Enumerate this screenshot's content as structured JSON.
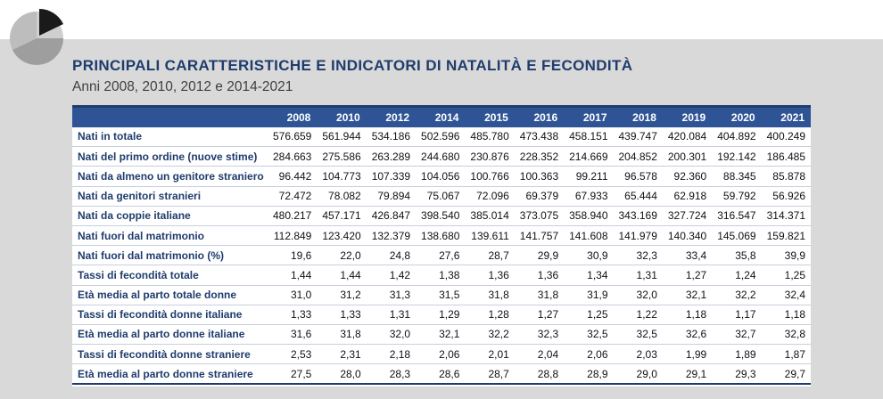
{
  "header": {
    "title": "PRINCIPALI CARATTERISTICHE E INDICATORI DI NATALITÀ E FECONDITÀ",
    "subtitle": "Anni 2008, 2010, 2012 e 2014-2021"
  },
  "logo": {
    "icon": "pie-chart-logo-icon",
    "colors": [
      "#1a1a1a",
      "#9e9e9e",
      "#cfcfcf"
    ]
  },
  "table": {
    "columns": [
      "2008",
      "2010",
      "2012",
      "2014",
      "2015",
      "2016",
      "2017",
      "2018",
      "2019",
      "2020",
      "2021"
    ],
    "rows": [
      {
        "label": "Nati in totale",
        "values": [
          "576.659",
          "561.944",
          "534.186",
          "502.596",
          "485.780",
          "473.438",
          "458.151",
          "439.747",
          "420.084",
          "404.892",
          "400.249"
        ]
      },
      {
        "label": "Nati del primo ordine (nuove stime)",
        "values": [
          "284.663",
          "275.586",
          "263.289",
          "244.680",
          "230.876",
          "228.352",
          "214.669",
          "204.852",
          "200.301",
          "192.142",
          "186.485"
        ]
      },
      {
        "label": "Nati da almeno un genitore straniero",
        "values": [
          "96.442",
          "104.773",
          "107.339",
          "104.056",
          "100.766",
          "100.363",
          "99.211",
          "96.578",
          "92.360",
          "88.345",
          "85.878"
        ]
      },
      {
        "label": "Nati da genitori stranieri",
        "values": [
          "72.472",
          "78.082",
          "79.894",
          "75.067",
          "72.096",
          "69.379",
          "67.933",
          "65.444",
          "62.918",
          "59.792",
          "56.926"
        ]
      },
      {
        "label": "Nati da coppie italiane",
        "values": [
          "480.217",
          "457.171",
          "426.847",
          "398.540",
          "385.014",
          "373.075",
          "358.940",
          "343.169",
          "327.724",
          "316.547",
          "314.371"
        ]
      },
      {
        "label": "Nati fuori dal matrimonio",
        "values": [
          "112.849",
          "123.420",
          "132.379",
          "138.680",
          "139.611",
          "141.757",
          "141.608",
          "141.979",
          "140.340",
          "145.069",
          "159.821"
        ]
      },
      {
        "label": "Nati fuori dal matrimonio (%)",
        "values": [
          "19,6",
          "22,0",
          "24,8",
          "27,6",
          "28,7",
          "29,9",
          "30,9",
          "32,3",
          "33,4",
          "35,8",
          "39,9"
        ]
      },
      {
        "label": "Tassi di fecondità totale",
        "values": [
          "1,44",
          "1,44",
          "1,42",
          "1,38",
          "1,36",
          "1,36",
          "1,34",
          "1,31",
          "1,27",
          "1,24",
          "1,25"
        ]
      },
      {
        "label": "Età media al parto totale donne",
        "values": [
          "31,0",
          "31,2",
          "31,3",
          "31,5",
          "31,8",
          "31,8",
          "31,9",
          "32,0",
          "32,1",
          "32,2",
          "32,4"
        ]
      },
      {
        "label": "Tassi di fecondità donne italiane",
        "values": [
          "1,33",
          "1,33",
          "1,31",
          "1,29",
          "1,28",
          "1,27",
          "1,25",
          "1,22",
          "1,18",
          "1,17",
          "1,18"
        ]
      },
      {
        "label": "Età media al parto donne italiane",
        "values": [
          "31,6",
          "31,8",
          "32,0",
          "32,1",
          "32,2",
          "32,3",
          "32,5",
          "32,5",
          "32,6",
          "32,7",
          "32,8"
        ]
      },
      {
        "label": "Tassi di fecondità donne straniere",
        "values": [
          "2,53",
          "2,31",
          "2,18",
          "2,06",
          "2,01",
          "2,04",
          "2,06",
          "2,03",
          "1,99",
          "1,89",
          "1,87"
        ]
      },
      {
        "label": "Età media al parto donne straniere",
        "values": [
          "27,5",
          "28,0",
          "28,3",
          "28,6",
          "28,7",
          "28,8",
          "28,9",
          "29,0",
          "29,1",
          "29,3",
          "29,7"
        ]
      }
    ]
  }
}
